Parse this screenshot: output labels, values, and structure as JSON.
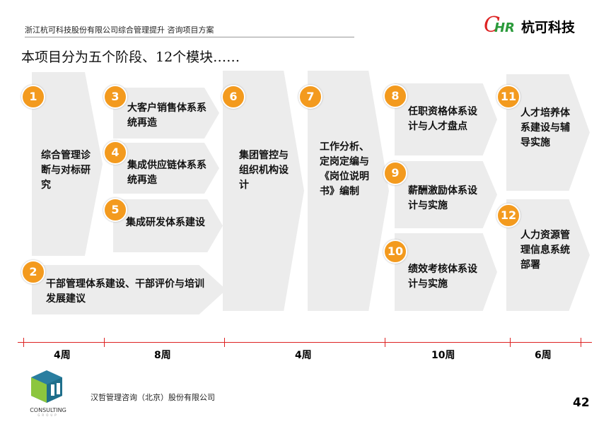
{
  "header": {
    "doc_title": "浙江杭可科技股份有限公司综合管理提升 咨询项目方案",
    "logo_text": "杭可科技",
    "logo_mark": "CHR"
  },
  "title": "本项目分为五个阶段、12个模块……",
  "modules": [
    {
      "num": "1",
      "label": "综合管理诊断与对标研究"
    },
    {
      "num": "2",
      "label": "干部管理体系建设、干部评价与培训发展建议"
    },
    {
      "num": "3",
      "label": "大客户销售体系系统再造"
    },
    {
      "num": "4",
      "label": "集成供应链体系系统再造"
    },
    {
      "num": "5",
      "label": "集成研发体系建设"
    },
    {
      "num": "6",
      "label": "集团管控与组织机构设计"
    },
    {
      "num": "7",
      "label": "工作分析、定岗定编与《岗位说明书》编制"
    },
    {
      "num": "8",
      "label": "任职资格体系设计与人才盘点"
    },
    {
      "num": "9",
      "label": "薪酬激励体系设计与实施"
    },
    {
      "num": "10",
      "label": "绩效考核体系设计与实施"
    },
    {
      "num": "11",
      "label": "人才培养体系建设与辅导实施"
    },
    {
      "num": "12",
      "label": "人力资源管理信息系统部署"
    }
  ],
  "timeline": [
    "4周",
    "8周",
    "4周",
    "10周",
    "6周"
  ],
  "colors": {
    "badge": "#f39a1e",
    "timeline": "#dd2222",
    "arrow": "#ececec"
  },
  "footer": {
    "company": "汉哲管理咨询（北京）股份有限公司",
    "logo_text": "CONSULTING",
    "logo_sub": "GROUP",
    "page": "42"
  }
}
